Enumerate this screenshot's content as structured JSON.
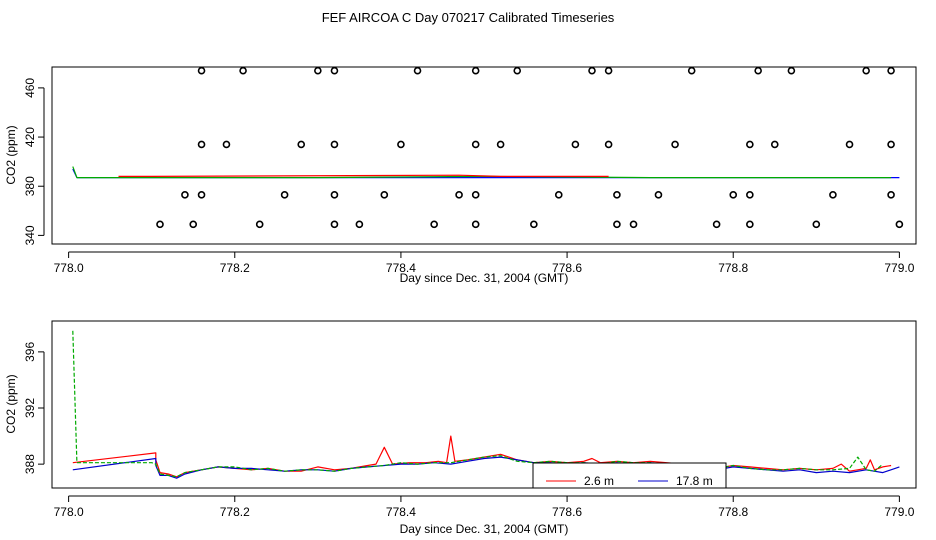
{
  "title": "FEF AIRCOA C  Day 070217  Calibrated Timeseries",
  "chart_data": [
    {
      "type": "scatter",
      "xlabel": "Day since Dec. 31, 2004 (GMT)",
      "ylabel": "CO2 (ppm)",
      "xlim": [
        777.98,
        779.02
      ],
      "ylim": [
        333,
        477
      ],
      "xticks": [
        778.0,
        778.2,
        778.4,
        778.6,
        778.8,
        779.0
      ],
      "xtick_labels": [
        "778.0",
        "778.2",
        "778.4",
        "778.6",
        "778.8",
        "779.0"
      ],
      "yticks": [
        340,
        380,
        420,
        460
      ],
      "ytick_labels": [
        "340",
        "380",
        "420",
        "460"
      ],
      "grid": false,
      "series": [
        {
          "color": "#0000ff",
          "points": [
            [
              778.005,
              394
            ],
            [
              778.01,
              387
            ],
            [
              778.1,
              387
            ],
            [
              778.2,
              387
            ],
            [
              778.4,
              387
            ],
            [
              778.6,
              387
            ],
            [
              778.8,
              387
            ],
            [
              779.0,
              387
            ]
          ]
        },
        {
          "color": "#00aa00",
          "points": [
            [
              778.005,
              396
            ],
            [
              778.01,
              387
            ],
            [
              778.3,
              387
            ],
            [
              778.5,
              388
            ],
            [
              778.7,
              387
            ],
            [
              778.99,
              387
            ]
          ]
        },
        {
          "color": "#ff0000",
          "points": [
            [
              778.06,
              388
            ],
            [
              778.1,
              388
            ],
            [
              778.47,
              389
            ],
            [
              778.52,
              388
            ],
            [
              778.65,
              388
            ]
          ]
        }
      ],
      "markers": {
        "style": "open-circle",
        "points": [
          [
            778.16,
            474
          ],
          [
            778.21,
            474
          ],
          [
            778.3,
            474
          ],
          [
            778.32,
            474
          ],
          [
            778.42,
            474
          ],
          [
            778.49,
            474
          ],
          [
            778.54,
            474
          ],
          [
            778.63,
            474
          ],
          [
            778.65,
            474
          ],
          [
            778.75,
            474
          ],
          [
            778.83,
            474
          ],
          [
            778.87,
            474
          ],
          [
            778.96,
            474
          ],
          [
            778.99,
            474
          ],
          [
            778.16,
            414
          ],
          [
            778.19,
            414
          ],
          [
            778.28,
            414
          ],
          [
            778.32,
            414
          ],
          [
            778.4,
            414
          ],
          [
            778.49,
            414
          ],
          [
            778.52,
            414
          ],
          [
            778.61,
            414
          ],
          [
            778.65,
            414
          ],
          [
            778.73,
            414
          ],
          [
            778.82,
            414
          ],
          [
            778.85,
            414
          ],
          [
            778.94,
            414
          ],
          [
            778.99,
            414
          ],
          [
            778.14,
            373
          ],
          [
            778.16,
            373
          ],
          [
            778.26,
            373
          ],
          [
            778.32,
            373
          ],
          [
            778.38,
            373
          ],
          [
            778.47,
            373
          ],
          [
            778.49,
            373
          ],
          [
            778.59,
            373
          ],
          [
            778.66,
            373
          ],
          [
            778.71,
            373
          ],
          [
            778.8,
            373
          ],
          [
            778.82,
            373
          ],
          [
            778.92,
            373
          ],
          [
            778.99,
            373
          ],
          [
            778.11,
            349
          ],
          [
            778.15,
            349
          ],
          [
            778.23,
            349
          ],
          [
            778.32,
            349
          ],
          [
            778.35,
            349
          ],
          [
            778.44,
            349
          ],
          [
            778.49,
            349
          ],
          [
            778.56,
            349
          ],
          [
            778.66,
            349
          ],
          [
            778.68,
            349
          ],
          [
            778.78,
            349
          ],
          [
            778.82,
            349
          ],
          [
            778.9,
            349
          ],
          [
            779.0,
            349
          ]
        ]
      }
    },
    {
      "type": "line",
      "xlabel": "Day since Dec. 31, 2004 (GMT)",
      "ylabel": "CO2 (ppm)",
      "xlim": [
        777.98,
        779.02
      ],
      "ylim": [
        386.3,
        398.2
      ],
      "xticks": [
        778.0,
        778.2,
        778.4,
        778.6,
        778.8,
        779.0
      ],
      "xtick_labels": [
        "778.0",
        "778.2",
        "778.4",
        "778.6",
        "778.8",
        "779.0"
      ],
      "yticks": [
        388,
        392,
        396
      ],
      "ytick_labels": [
        "388",
        "392",
        "396"
      ],
      "grid": false,
      "legend_position": "bottom-center",
      "series": [
        {
          "name": "2.6 m",
          "color": "#ff0000",
          "points": [
            [
              778.005,
              388.1
            ],
            [
              778.105,
              388.8
            ],
            [
              778.105,
              388.3
            ],
            [
              778.11,
              387.4
            ],
            [
              778.12,
              387.3
            ],
            [
              778.13,
              387.1
            ],
            [
              778.14,
              387.4
            ],
            [
              778.16,
              387.6
            ],
            [
              778.18,
              387.8
            ],
            [
              778.2,
              387.7
            ],
            [
              778.22,
              387.6
            ],
            [
              778.24,
              387.7
            ],
            [
              778.26,
              387.5
            ],
            [
              778.28,
              387.5
            ],
            [
              778.3,
              387.8
            ],
            [
              778.32,
              387.6
            ],
            [
              778.34,
              387.7
            ],
            [
              778.36,
              387.9
            ],
            [
              778.37,
              388.0
            ],
            [
              778.38,
              389.2
            ],
            [
              778.39,
              388.0
            ],
            [
              778.41,
              388.1
            ],
            [
              778.43,
              388.1
            ],
            [
              778.445,
              388.2
            ],
            [
              778.455,
              388.1
            ],
            [
              778.46,
              390.0
            ],
            [
              778.465,
              388.2
            ],
            [
              778.48,
              388.3
            ],
            [
              778.5,
              388.5
            ],
            [
              778.52,
              388.7
            ],
            [
              778.54,
              388.3
            ],
            [
              778.56,
              388.1
            ],
            [
              778.58,
              388.2
            ],
            [
              778.6,
              388.1
            ],
            [
              778.62,
              388.2
            ],
            [
              778.63,
              388.4
            ],
            [
              778.64,
              388.1
            ],
            [
              778.66,
              388.2
            ],
            [
              778.68,
              388.1
            ],
            [
              778.7,
              388.2
            ],
            [
              778.72,
              388.1
            ],
            [
              778.74,
              388.0
            ],
            [
              778.76,
              387.9
            ],
            [
              778.78,
              387.7
            ],
            [
              778.8,
              387.9
            ],
            [
              778.82,
              387.8
            ],
            [
              778.84,
              387.7
            ],
            [
              778.86,
              387.6
            ],
            [
              778.88,
              387.7
            ],
            [
              778.9,
              387.6
            ],
            [
              778.92,
              387.7
            ],
            [
              778.93,
              388.0
            ],
            [
              778.94,
              387.5
            ],
            [
              778.95,
              387.6
            ],
            [
              778.96,
              387.7
            ],
            [
              778.965,
              388.3
            ],
            [
              778.97,
              387.6
            ],
            [
              778.98,
              387.8
            ],
            [
              778.99,
              387.9
            ]
          ]
        },
        {
          "name": "17.8 m",
          "color": "#0000cc",
          "points": [
            [
              778.005,
              387.6
            ],
            [
              778.105,
              388.4
            ],
            [
              778.105,
              387.9
            ],
            [
              778.11,
              387.2
            ],
            [
              778.12,
              387.2
            ],
            [
              778.13,
              387.0
            ],
            [
              778.14,
              387.3
            ],
            [
              778.16,
              387.6
            ],
            [
              778.18,
              387.8
            ],
            [
              778.2,
              387.7
            ],
            [
              778.22,
              387.7
            ],
            [
              778.24,
              387.6
            ],
            [
              778.26,
              387.5
            ],
            [
              778.28,
              387.6
            ],
            [
              778.3,
              387.6
            ],
            [
              778.32,
              387.5
            ],
            [
              778.34,
              387.7
            ],
            [
              778.36,
              387.8
            ],
            [
              778.38,
              387.9
            ],
            [
              778.4,
              388.0
            ],
            [
              778.42,
              388.0
            ],
            [
              778.44,
              388.1
            ],
            [
              778.46,
              388.0
            ],
            [
              778.48,
              388.2
            ],
            [
              778.5,
              388.4
            ],
            [
              778.52,
              388.5
            ],
            [
              778.54,
              388.3
            ],
            [
              778.56,
              388.1
            ],
            [
              778.58,
              388.1
            ],
            [
              778.6,
              388.0
            ],
            [
              778.62,
              388.1
            ],
            [
              778.64,
              388.0
            ],
            [
              778.66,
              388.1
            ],
            [
              778.68,
              388.0
            ],
            [
              778.7,
              388.1
            ],
            [
              778.72,
              388.0
            ],
            [
              778.74,
              387.9
            ],
            [
              778.76,
              387.7
            ],
            [
              778.78,
              387.6
            ],
            [
              778.8,
              387.8
            ],
            [
              778.82,
              387.7
            ],
            [
              778.84,
              387.6
            ],
            [
              778.86,
              387.5
            ],
            [
              778.88,
              387.6
            ],
            [
              778.9,
              387.4
            ],
            [
              778.92,
              387.5
            ],
            [
              778.94,
              387.4
            ],
            [
              778.96,
              387.6
            ],
            [
              778.98,
              387.4
            ],
            [
              779.0,
              387.8
            ]
          ]
        },
        {
          "color": "#00aa00",
          "dashed": true,
          "points": [
            [
              778.005,
              397.5
            ],
            [
              778.01,
              388.1
            ],
            [
              778.1,
              388.1
            ],
            [
              778.105,
              388.0
            ],
            [
              778.11,
              387.3
            ],
            [
              778.12,
              387.2
            ],
            [
              778.13,
              387.1
            ],
            [
              778.14,
              387.4
            ],
            [
              778.16,
              387.6
            ],
            [
              778.18,
              387.8
            ],
            [
              778.2,
              387.8
            ],
            [
              778.22,
              387.6
            ],
            [
              778.24,
              387.7
            ],
            [
              778.26,
              387.5
            ],
            [
              778.28,
              387.6
            ],
            [
              778.3,
              387.6
            ],
            [
              778.32,
              387.5
            ],
            [
              778.34,
              387.7
            ],
            [
              778.36,
              387.8
            ],
            [
              778.38,
              387.9
            ],
            [
              778.4,
              388.1
            ],
            [
              778.42,
              388.0
            ],
            [
              778.44,
              388.1
            ],
            [
              778.46,
              388.1
            ],
            [
              778.48,
              388.3
            ],
            [
              778.5,
              388.5
            ],
            [
              778.52,
              388.6
            ],
            [
              778.54,
              388.2
            ],
            [
              778.56,
              388.1
            ],
            [
              778.58,
              388.2
            ],
            [
              778.6,
              388.1
            ],
            [
              778.62,
              388.1
            ],
            [
              778.64,
              388.0
            ],
            [
              778.66,
              388.2
            ],
            [
              778.68,
              388.1
            ],
            [
              778.7,
              388.1
            ],
            [
              778.72,
              388.0
            ],
            [
              778.74,
              387.9
            ],
            [
              778.76,
              387.8
            ],
            [
              778.78,
              387.7
            ],
            [
              778.8,
              387.9
            ],
            [
              778.82,
              387.7
            ],
            [
              778.84,
              387.6
            ],
            [
              778.86,
              387.6
            ],
            [
              778.88,
              387.7
            ],
            [
              778.9,
              387.6
            ],
            [
              778.92,
              387.6
            ],
            [
              778.94,
              387.7
            ],
            [
              778.95,
              388.5
            ],
            [
              778.96,
              387.6
            ],
            [
              778.97,
              387.5
            ],
            [
              778.98,
              388.0
            ]
          ]
        }
      ]
    }
  ]
}
